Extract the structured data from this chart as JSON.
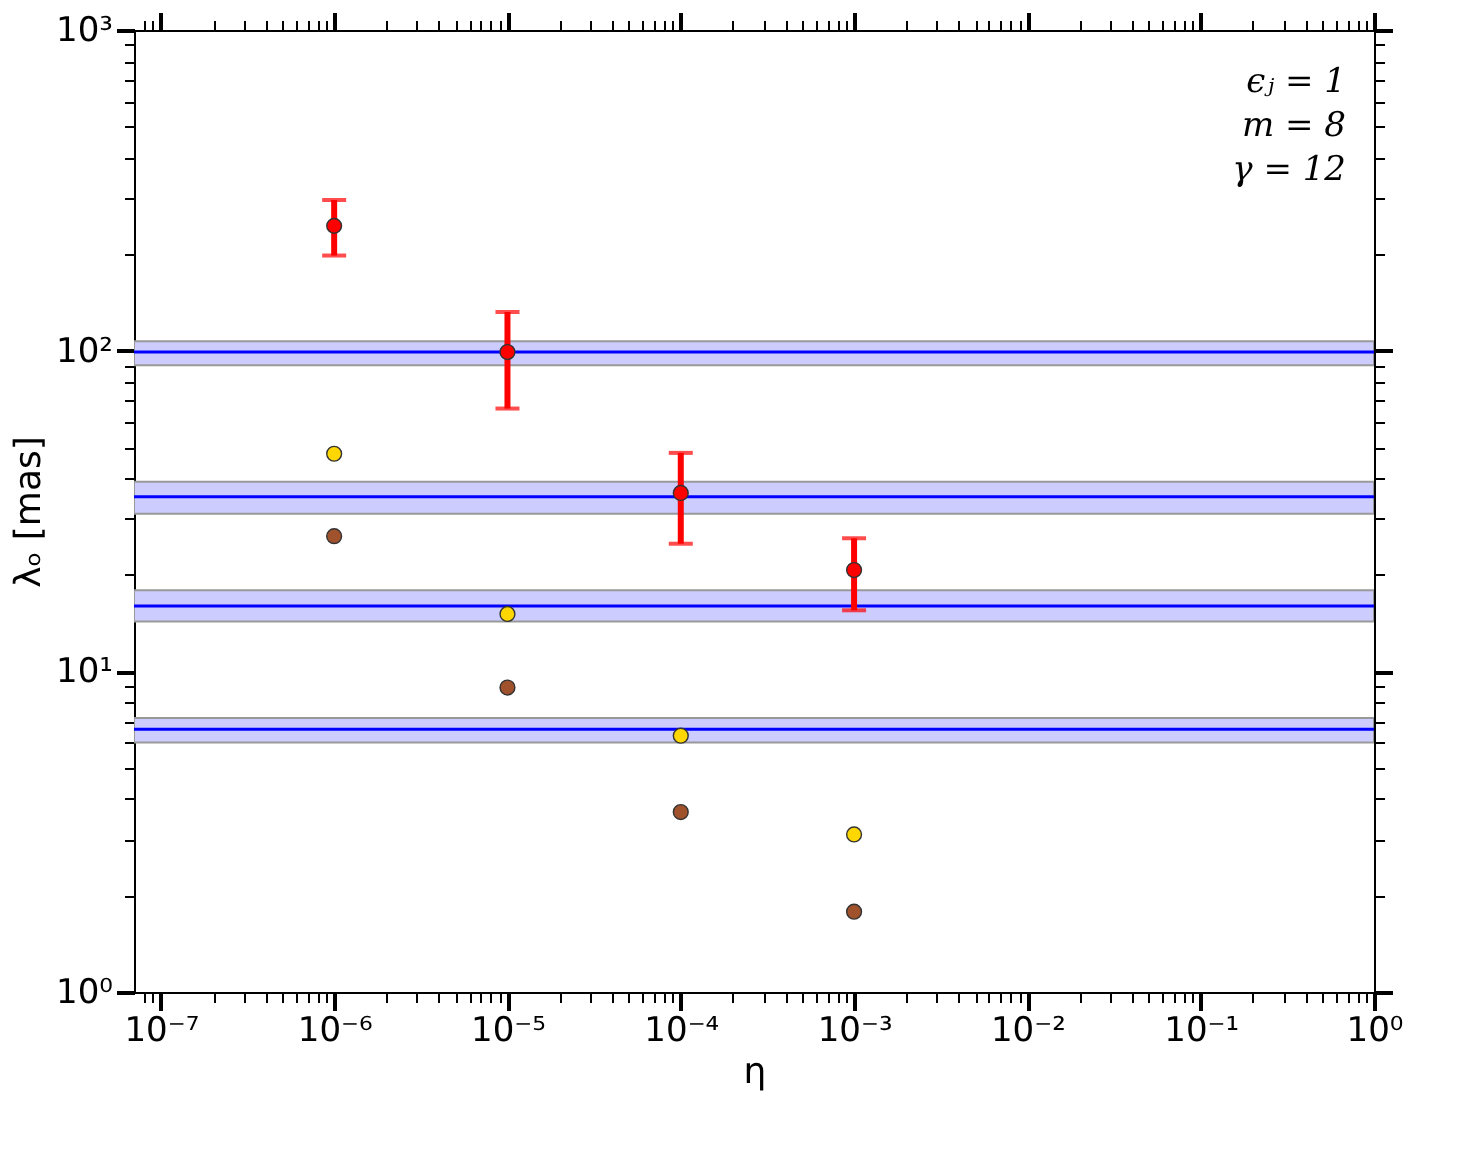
{
  "chart_data": {
    "type": "scatter",
    "xlabel": "η",
    "ylabel": "λₒ [mas]",
    "log": "xy",
    "marker": "circle",
    "grid": false,
    "annotations": [
      "ϵⱼ = 1",
      "m = 8",
      "γ = 12"
    ],
    "x": [
      1e-06,
      1e-05,
      0.0001,
      0.001
    ],
    "series": [
      {
        "color": "#ff0000",
        "values": [
          245,
          99,
          36,
          20.7
        ],
        "errors": [
          [
            198,
            295
          ],
          [
            66,
            132
          ],
          [
            25,
            48
          ],
          [
            15.5,
            26
          ]
        ]
      },
      {
        "color": "#ffd700",
        "values": [
          47.7,
          15.1,
          6.3,
          3.1
        ]
      },
      {
        "color": "#a0522d",
        "values": [
          26.4,
          8.9,
          3.64,
          1.78
        ]
      }
    ],
    "ref_lines": [
      {
        "axis": "y",
        "value": 99,
        "color": "#0000ff"
      },
      {
        "axis": "y",
        "value": 35,
        "color": "#0000ff"
      },
      {
        "axis": "y",
        "value": 16,
        "color": "#0000ff"
      },
      {
        "axis": "y",
        "value": 6.6,
        "color": "#0000ff"
      }
    ],
    "bands": [
      {
        "axis": "y",
        "from": 90,
        "to": 107,
        "color": "#ccccff"
      },
      {
        "axis": "y",
        "from": 31,
        "to": 39,
        "color": "#ccccff"
      },
      {
        "axis": "y",
        "from": 14.3,
        "to": 17.9,
        "color": "#ccccff"
      },
      {
        "axis": "y",
        "from": 6.0,
        "to": 7.15,
        "color": "#ccccff"
      }
    ],
    "xlim": [
      7e-08,
      1
    ],
    "ylim": [
      1,
      1000
    ],
    "xticks": [
      {
        "value": 1e-07,
        "label": "10⁻⁷"
      },
      {
        "value": 1e-06,
        "label": "10⁻⁶"
      },
      {
        "value": 1e-05,
        "label": "10⁻⁵"
      },
      {
        "value": 0.0001,
        "label": "10⁻⁴"
      },
      {
        "value": 0.001,
        "label": "10⁻³"
      },
      {
        "value": 0.01,
        "label": "10⁻²"
      },
      {
        "value": 0.1,
        "label": "10⁻¹"
      },
      {
        "value": 1,
        "label": "10⁰"
      },
      {
        "value": 8e-08,
        "label": null
      },
      {
        "value": 9e-08,
        "label": null
      },
      {
        "value": 2e-07,
        "label": null
      },
      {
        "value": 3e-07,
        "label": null
      },
      {
        "value": 4e-07,
        "label": null
      },
      {
        "value": 5e-07,
        "label": null
      },
      {
        "value": 6e-07,
        "label": null
      },
      {
        "value": 7e-07,
        "label": null
      },
      {
        "value": 8e-07,
        "label": null
      },
      {
        "value": 9e-07,
        "label": null
      },
      {
        "value": 2e-06,
        "label": null
      },
      {
        "value": 3e-06,
        "label": null
      },
      {
        "value": 4e-06,
        "label": null
      },
      {
        "value": 5e-06,
        "label": null
      },
      {
        "value": 6e-06,
        "label": null
      },
      {
        "value": 7e-06,
        "label": null
      },
      {
        "value": 8e-06,
        "label": null
      },
      {
        "value": 9e-06,
        "label": null
      },
      {
        "value": 2e-05,
        "label": null
      },
      {
        "value": 3e-05,
        "label": null
      },
      {
        "value": 4e-05,
        "label": null
      },
      {
        "value": 5e-05,
        "label": null
      },
      {
        "value": 6e-05,
        "label": null
      },
      {
        "value": 7e-05,
        "label": null
      },
      {
        "value": 8e-05,
        "label": null
      },
      {
        "value": 9e-05,
        "label": null
      },
      {
        "value": 0.0002,
        "label": null
      },
      {
        "value": 0.0003,
        "label": null
      },
      {
        "value": 0.0004,
        "label": null
      },
      {
        "value": 0.0005,
        "label": null
      },
      {
        "value": 0.0006,
        "label": null
      },
      {
        "value": 0.0007,
        "label": null
      },
      {
        "value": 0.0008,
        "label": null
      },
      {
        "value": 0.0009,
        "label": null
      },
      {
        "value": 0.002,
        "label": null
      },
      {
        "value": 0.003,
        "label": null
      },
      {
        "value": 0.004,
        "label": null
      },
      {
        "value": 0.005,
        "label": null
      },
      {
        "value": 0.006,
        "label": null
      },
      {
        "value": 0.007,
        "label": null
      },
      {
        "value": 0.008,
        "label": null
      },
      {
        "value": 0.009,
        "label": null
      },
      {
        "value": 0.02,
        "label": null
      },
      {
        "value": 0.03,
        "label": null
      },
      {
        "value": 0.04,
        "label": null
      },
      {
        "value": 0.05,
        "label": null
      },
      {
        "value": 0.06,
        "label": null
      },
      {
        "value": 0.07,
        "label": null
      },
      {
        "value": 0.08,
        "label": null
      },
      {
        "value": 0.09,
        "label": null
      },
      {
        "value": 0.2,
        "label": null
      },
      {
        "value": 0.3,
        "label": null
      },
      {
        "value": 0.4,
        "label": null
      },
      {
        "value": 0.5,
        "label": null
      },
      {
        "value": 0.6,
        "label": null
      },
      {
        "value": 0.7,
        "label": null
      },
      {
        "value": 0.8,
        "label": null
      },
      {
        "value": 0.9,
        "label": null
      }
    ],
    "yticks": [
      {
        "value": 1,
        "label": "10⁰"
      },
      {
        "value": 10,
        "label": "10¹"
      },
      {
        "value": 100,
        "label": "10²"
      },
      {
        "value": 1000,
        "label": "10³"
      },
      {
        "value": 2,
        "label": null
      },
      {
        "value": 3,
        "label": null
      },
      {
        "value": 4,
        "label": null
      },
      {
        "value": 5,
        "label": null
      },
      {
        "value": 6,
        "label": null
      },
      {
        "value": 7,
        "label": null
      },
      {
        "value": 8,
        "label": null
      },
      {
        "value": 9,
        "label": null
      },
      {
        "value": 20,
        "label": null
      },
      {
        "value": 30,
        "label": null
      },
      {
        "value": 40,
        "label": null
      },
      {
        "value": 50,
        "label": null
      },
      {
        "value": 60,
        "label": null
      },
      {
        "value": 70,
        "label": null
      },
      {
        "value": 80,
        "label": null
      },
      {
        "value": 90,
        "label": null
      },
      {
        "value": 200,
        "label": null
      },
      {
        "value": 300,
        "label": null
      },
      {
        "value": 400,
        "label": null
      },
      {
        "value": 500,
        "label": null
      },
      {
        "value": 600,
        "label": null
      },
      {
        "value": 700,
        "label": null
      },
      {
        "value": 800,
        "label": null
      },
      {
        "value": 900,
        "label": null
      }
    ]
  }
}
